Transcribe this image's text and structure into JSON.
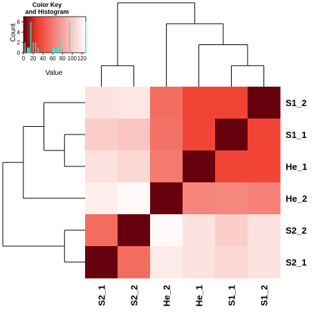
{
  "chart_data": {
    "type": "heatmap",
    "rows": [
      "S1_2",
      "S1_1",
      "He_1",
      "He_2",
      "S2_2",
      "S2_1"
    ],
    "columns": [
      "S2_1",
      "S2_2",
      "He_2",
      "He_1",
      "S1_1",
      "S1_2"
    ],
    "values": [
      [
        15,
        12,
        75,
        95,
        95,
        128
      ],
      [
        25,
        30,
        72,
        95,
        128,
        95
      ],
      [
        15,
        20,
        68,
        128,
        95,
        95
      ],
      [
        8,
        3,
        128,
        62,
        60,
        64
      ],
      [
        75,
        128,
        3,
        15,
        25,
        15
      ],
      [
        128,
        75,
        10,
        15,
        20,
        15
      ]
    ],
    "color_scale": {
      "low": "#ffffff",
      "mid": "#ef3b2c",
      "high": "#67000d"
    },
    "color_key": {
      "title_line1": "Color Key",
      "title_line2": "and Histogram",
      "ylabel": "Count",
      "xlabel": "Value",
      "x_ticks": [
        "0",
        "20",
        "40",
        "60",
        "80",
        "100",
        "120"
      ],
      "y_ticks": [
        "0",
        "2",
        "4",
        "6"
      ],
      "xlim": [
        0,
        128
      ],
      "ylim": [
        0,
        7
      ],
      "histogram_x": [
        3,
        8,
        10,
        12,
        15,
        20,
        25,
        30,
        60,
        62,
        64,
        68,
        72,
        75,
        95,
        128
      ],
      "histogram_counts": [
        2,
        1,
        1,
        1,
        6,
        2,
        2,
        1,
        1,
        1,
        1,
        1,
        1,
        3,
        6,
        6
      ],
      "histogram_color": "#40e0d0"
    },
    "row_dendrogram": "((S1_2,(S1_1,He_1)),He_2),(S2_2,S2_1)",
    "column_dendrogram": "(S2_1,S2_2),(He_2,(He_1,(S1_1,S1_2)))"
  }
}
